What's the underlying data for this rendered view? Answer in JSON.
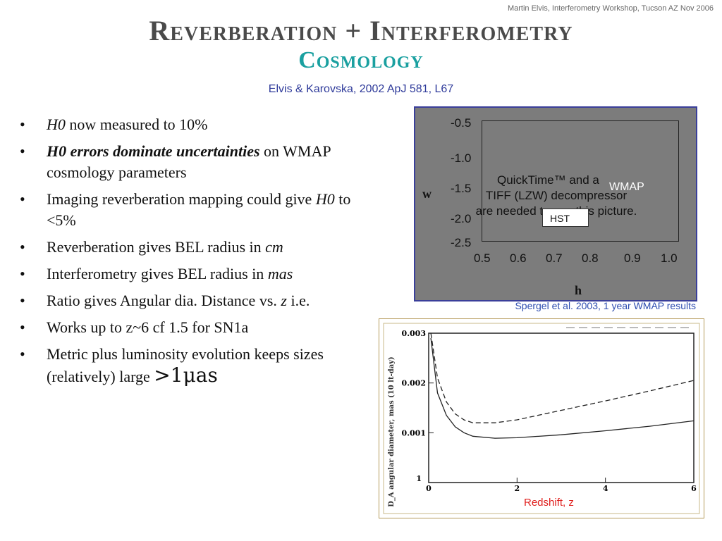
{
  "header_note": "Martin Elvis, Interferometry Workshop, Tucson AZ Nov 2006",
  "title": "Reverberation + Interferometry",
  "subtitle": "Cosmology",
  "citation": "Elvis & Karovska, 2002 ApJ 581, L67",
  "bullet_symbol": "•",
  "bullets": [
    {
      "a_it": "H0",
      "b": " now measured to 10%"
    },
    {
      "a_bi": "H0 errors dominate uncertainties",
      "b": " on WMAP cosmology parameters"
    },
    {
      "a": "Imaging reverberation mapping could give ",
      "b_it": "H0",
      "c": " to <5%"
    },
    {
      "a": "Reverberation gives BEL radius in ",
      "b_it": "cm"
    },
    {
      "a": "Interferometry gives BEL radius in ",
      "b_it": "mas"
    },
    {
      "a": "Ratio gives Angular dia. Distance vs. ",
      "b_it": "z",
      "c": " i.e."
    },
    {
      "a": "Works up to z~6 cf 1.5 for SN1a"
    },
    {
      "a": "Metric plus luminosity evolution keeps sizes (relatively) large ",
      "big": ">1μas"
    }
  ],
  "plot1": {
    "y_ticks": [
      "-0.5",
      "-1.0",
      "-1.5",
      "-2.0",
      "-2.5"
    ],
    "x_ticks": [
      "0.5",
      "0.6",
      "0.7",
      "0.8",
      "0.9",
      "1.0"
    ],
    "ylabel": "w",
    "xlabel": "h",
    "qt_line1": "QuickTime™ and a",
    "qt_line2": "TIFF (LZW) decompressor",
    "qt_line3": "are needed to see this picture.",
    "wmap_label": "WMAP",
    "hst_label": "HST",
    "caption": "Spergel et al. 2003, 1 year WMAP results"
  },
  "plot2": {
    "y_ticks": [
      "0.003",
      "0.002",
      "0.001",
      "1"
    ],
    "x_ticks": [
      "0",
      "2",
      "4",
      "6"
    ],
    "ylabel": "D_A angular diameter, mas (10 lt-day)",
    "xlabel": "Redshift, z"
  },
  "chart_data": {
    "type": "line",
    "title": "",
    "xlabel": "Redshift, z",
    "ylabel": "D_A angular diameter, mas (10 lt-day)",
    "xlim": [
      0,
      6
    ],
    "ylim": [
      0,
      0.003
    ],
    "series": [
      {
        "style": "solid",
        "x": [
          0.05,
          0.2,
          0.4,
          0.6,
          0.8,
          1.0,
          1.5,
          2,
          3,
          4,
          5,
          6
        ],
        "y": [
          0.0029,
          0.0018,
          0.00135,
          0.00112,
          0.001,
          0.00093,
          0.00089,
          0.0009,
          0.00096,
          0.00104,
          0.00113,
          0.00124
        ]
      },
      {
        "style": "dashed",
        "x": [
          0.05,
          0.2,
          0.4,
          0.6,
          0.8,
          1.0,
          1.5,
          2,
          3,
          4,
          5,
          6
        ],
        "y": [
          0.003,
          0.0021,
          0.00162,
          0.00138,
          0.00126,
          0.0012,
          0.0012,
          0.00126,
          0.00145,
          0.00164,
          0.00184,
          0.00205
        ]
      }
    ]
  }
}
